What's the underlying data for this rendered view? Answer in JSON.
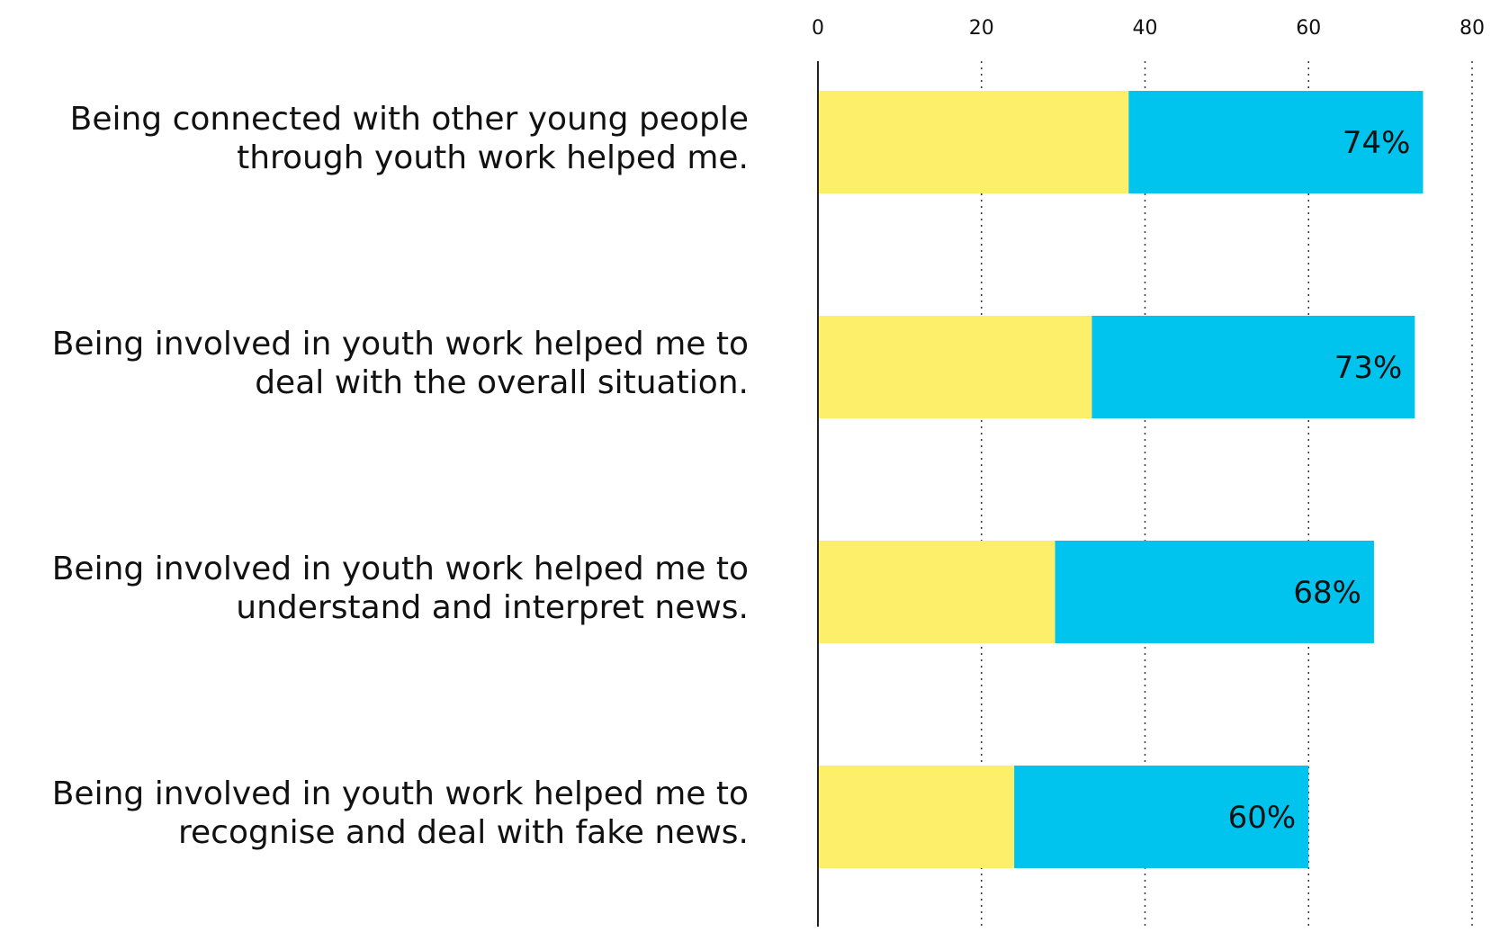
{
  "chart_data": {
    "type": "bar",
    "orientation": "horizontal",
    "stacked": true,
    "categories": [
      [
        "Being connected with other young people",
        "through youth work helped me."
      ],
      [
        "Being involved in youth work helped me to",
        "deal with the overall situation."
      ],
      [
        "Being involved in youth work helped me to",
        "understand and interpret news."
      ],
      [
        "Being involved in youth work helped me to",
        "recognise and deal with fake news."
      ]
    ],
    "series": [
      {
        "color": "#fdef6a",
        "values": [
          38,
          33.5,
          29,
          24
        ]
      },
      {
        "color": "#00c4ee",
        "values": [
          36,
          39.5,
          39,
          36
        ]
      }
    ],
    "data_labels": [
      "74%",
      "73%",
      "68%",
      "60%"
    ],
    "xlim": [
      0,
      80
    ],
    "xticks": [
      0,
      20,
      40,
      60,
      80
    ],
    "x_axis_position": "top",
    "grid": "vertical dotted",
    "legend": "none",
    "title": "",
    "xlabel": "",
    "ylabel": ""
  }
}
